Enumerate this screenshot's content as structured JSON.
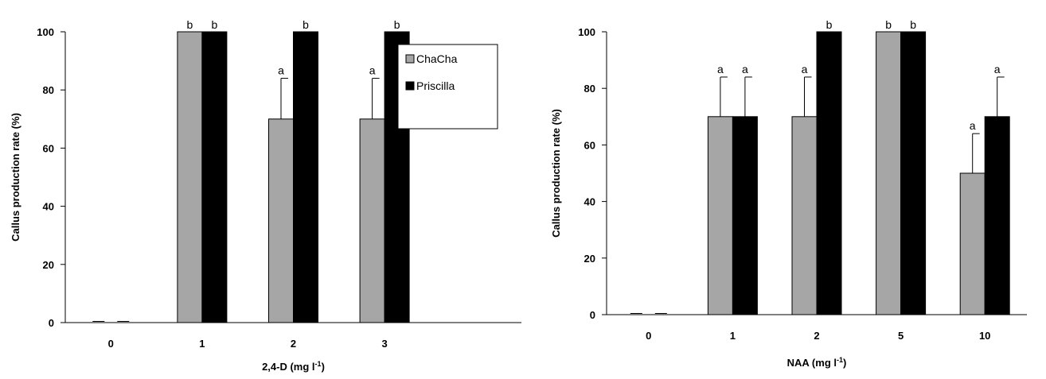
{
  "chart_data": [
    {
      "type": "bar",
      "xlabel": "2,4-D (mg l",
      "xlabel_sup": "-1",
      "xlabel_suffix": ")",
      "ylabel": "Callus production rate (%)",
      "ylim": [
        0,
        100
      ],
      "yticks": [
        0,
        20,
        40,
        60,
        80,
        100
      ],
      "categories": [
        "0",
        "1",
        "2",
        "3"
      ],
      "slots": 5,
      "legend": {
        "position": "top-right",
        "show": true
      },
      "series": [
        {
          "name": "ChaCha",
          "color": "#a6a6a6",
          "values": [
            0,
            100,
            70,
            70
          ],
          "errors": [
            0,
            0,
            14,
            14
          ],
          "labels": [
            "",
            "b",
            "a",
            "a"
          ]
        },
        {
          "name": "Priscilla",
          "color": "#000000",
          "values": [
            0,
            100,
            100,
            100
          ],
          "errors": [
            0,
            0,
            0,
            0
          ],
          "labels": [
            "",
            "b",
            "b",
            "b"
          ]
        }
      ]
    },
    {
      "type": "bar",
      "xlabel": "NAA (mg l",
      "xlabel_sup": "-1",
      "xlabel_suffix": ")",
      "ylabel": "Callus production rate (%)",
      "ylim": [
        0,
        100
      ],
      "yticks": [
        0,
        20,
        40,
        60,
        80,
        100
      ],
      "categories": [
        "0",
        "1",
        "2",
        "5",
        "10"
      ],
      "slots": 5,
      "legend": {
        "show": false
      },
      "series": [
        {
          "name": "ChaCha",
          "color": "#a6a6a6",
          "values": [
            0,
            70,
            70,
            100,
            50
          ],
          "errors": [
            0,
            14,
            14,
            0,
            14
          ],
          "labels": [
            "",
            "a",
            "a",
            "b",
            "a"
          ]
        },
        {
          "name": "Priscilla",
          "color": "#000000",
          "values": [
            0,
            70,
            100,
            100,
            70
          ],
          "errors": [
            0,
            14,
            0,
            0,
            14
          ],
          "labels": [
            "",
            "a",
            "b",
            "b",
            "a"
          ]
        }
      ]
    }
  ]
}
